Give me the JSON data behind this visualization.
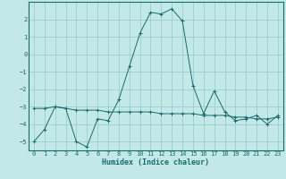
{
  "xlabel": "Humidex (Indice chaleur)",
  "xlim": [
    -0.5,
    23.5
  ],
  "ylim": [
    -5.5,
    3.0
  ],
  "yticks": [
    -5,
    -4,
    -3,
    -2,
    -1,
    0,
    1,
    2
  ],
  "xticks": [
    0,
    1,
    2,
    3,
    4,
    5,
    6,
    7,
    8,
    9,
    10,
    11,
    12,
    13,
    14,
    15,
    16,
    17,
    18,
    19,
    20,
    21,
    22,
    23
  ],
  "bg_color": "#c2e8e8",
  "grid_color": "#9ecece",
  "line_color": "#1a6b6b",
  "line1_x": [
    0,
    1,
    2,
    3,
    4,
    5,
    6,
    7,
    8,
    9,
    10,
    11,
    12,
    13,
    14,
    15,
    16,
    17,
    18,
    19,
    20,
    21,
    22,
    23
  ],
  "line1_y": [
    -5.0,
    -4.3,
    -3.0,
    -3.1,
    -5.0,
    -5.3,
    -3.7,
    -3.8,
    -2.6,
    -0.7,
    1.2,
    2.4,
    2.3,
    2.6,
    1.9,
    -1.8,
    -3.4,
    -2.1,
    -3.3,
    -3.8,
    -3.7,
    -3.5,
    -4.0,
    -3.5
  ],
  "line2_x": [
    0,
    1,
    2,
    3,
    4,
    5,
    6,
    7,
    8,
    9,
    10,
    11,
    12,
    13,
    14,
    15,
    16,
    17,
    18,
    19,
    20,
    21,
    22,
    23
  ],
  "line2_y": [
    -3.1,
    -3.1,
    -3.0,
    -3.1,
    -3.2,
    -3.2,
    -3.2,
    -3.3,
    -3.3,
    -3.3,
    -3.3,
    -3.3,
    -3.4,
    -3.4,
    -3.4,
    -3.4,
    -3.5,
    -3.5,
    -3.5,
    -3.6,
    -3.6,
    -3.7,
    -3.7,
    -3.6
  ]
}
